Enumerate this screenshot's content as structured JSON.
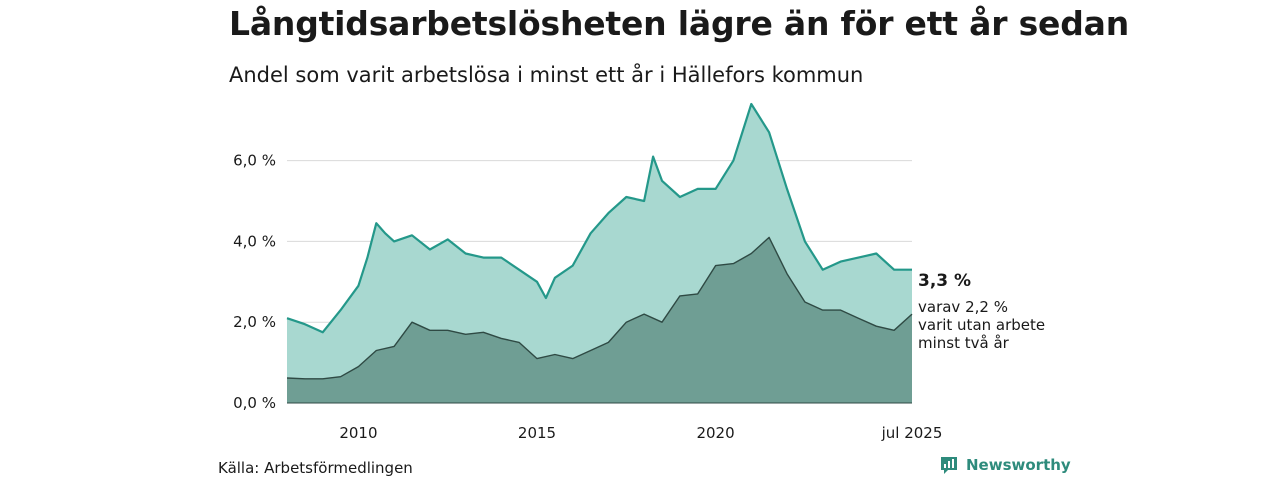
{
  "title": "Långtidsarbetslösheten lägre än för ett år sedan",
  "subtitle": "Andel som varit arbetslösa i minst ett år i Hällefors kommun",
  "source": "Källa: Arbetsförmedlingen",
  "brand": "Newsworthy",
  "colors": {
    "series1_fill": "#a8d8d0",
    "series1_line": "#24988a",
    "series2_fill": "#6f9e94",
    "series2_line": "#2f4a44",
    "grid": "#d9d9d9",
    "brand": "#2e8b7c"
  },
  "chart_data": {
    "type": "area",
    "title": "Långtidsarbetslösheten lägre än för ett år sedan",
    "subtitle": "Andel som varit arbetslösa i minst ett år i Hällefors kommun",
    "ylim": [
      0,
      7.5
    ],
    "xlim": [
      "2008-01",
      "2025-07"
    ],
    "y_ticks": [
      "0,0 %",
      "2,0 %",
      "4,0 %",
      "6,0 %"
    ],
    "y_tick_values": [
      0,
      2,
      4,
      6
    ],
    "x_ticks": [
      "2010",
      "2015",
      "2020",
      "jul 2025"
    ],
    "x_tick_values": [
      "2010-01",
      "2015-01",
      "2020-01",
      "2025-07"
    ],
    "grid": true,
    "series": [
      {
        "name": "Arbetslösa minst ett år",
        "points": [
          [
            "2008-01",
            2.1
          ],
          [
            "2008-07",
            1.95
          ],
          [
            "2009-01",
            1.75
          ],
          [
            "2009-07",
            2.3
          ],
          [
            "2010-01",
            2.9
          ],
          [
            "2010-04",
            3.6
          ],
          [
            "2010-07",
            4.45
          ],
          [
            "2010-10",
            4.2
          ],
          [
            "2011-01",
            4.0
          ],
          [
            "2011-07",
            4.15
          ],
          [
            "2012-01",
            3.8
          ],
          [
            "2012-07",
            4.05
          ],
          [
            "2013-01",
            3.7
          ],
          [
            "2013-07",
            3.6
          ],
          [
            "2014-01",
            3.6
          ],
          [
            "2014-07",
            3.3
          ],
          [
            "2015-01",
            3.0
          ],
          [
            "2015-04",
            2.6
          ],
          [
            "2015-07",
            3.1
          ],
          [
            "2016-01",
            3.4
          ],
          [
            "2016-07",
            4.2
          ],
          [
            "2017-01",
            4.7
          ],
          [
            "2017-07",
            5.1
          ],
          [
            "2018-01",
            5.0
          ],
          [
            "2018-04",
            6.1
          ],
          [
            "2018-07",
            5.5
          ],
          [
            "2019-01",
            5.1
          ],
          [
            "2019-07",
            5.3
          ],
          [
            "2020-01",
            5.3
          ],
          [
            "2020-07",
            6.0
          ],
          [
            "2021-01",
            7.4
          ],
          [
            "2021-07",
            6.7
          ],
          [
            "2022-01",
            5.3
          ],
          [
            "2022-07",
            4.0
          ],
          [
            "2023-01",
            3.3
          ],
          [
            "2023-07",
            3.5
          ],
          [
            "2024-01",
            3.6
          ],
          [
            "2024-07",
            3.7
          ],
          [
            "2025-01",
            3.3
          ],
          [
            "2025-07",
            3.3
          ]
        ]
      },
      {
        "name": "Arbetslösa minst två år",
        "points": [
          [
            "2008-01",
            0.62
          ],
          [
            "2008-07",
            0.6
          ],
          [
            "2009-01",
            0.6
          ],
          [
            "2009-07",
            0.65
          ],
          [
            "2010-01",
            0.9
          ],
          [
            "2010-07",
            1.3
          ],
          [
            "2011-01",
            1.4
          ],
          [
            "2011-07",
            2.0
          ],
          [
            "2012-01",
            1.8
          ],
          [
            "2012-07",
            1.8
          ],
          [
            "2013-01",
            1.7
          ],
          [
            "2013-07",
            1.75
          ],
          [
            "2014-01",
            1.6
          ],
          [
            "2014-07",
            1.5
          ],
          [
            "2015-01",
            1.1
          ],
          [
            "2015-07",
            1.2
          ],
          [
            "2016-01",
            1.1
          ],
          [
            "2016-07",
            1.3
          ],
          [
            "2017-01",
            1.5
          ],
          [
            "2017-07",
            2.0
          ],
          [
            "2018-01",
            2.2
          ],
          [
            "2018-07",
            2.0
          ],
          [
            "2019-01",
            2.65
          ],
          [
            "2019-07",
            2.7
          ],
          [
            "2020-01",
            3.4
          ],
          [
            "2020-07",
            3.45
          ],
          [
            "2021-01",
            3.7
          ],
          [
            "2021-07",
            4.1
          ],
          [
            "2022-01",
            3.2
          ],
          [
            "2022-07",
            2.5
          ],
          [
            "2023-01",
            2.3
          ],
          [
            "2023-07",
            2.3
          ],
          [
            "2024-01",
            2.1
          ],
          [
            "2024-07",
            1.9
          ],
          [
            "2025-01",
            1.8
          ],
          [
            "2025-07",
            2.2
          ]
        ]
      }
    ],
    "end_labels": {
      "main": "3,3 %",
      "sub_lines": [
        "varav 2,2 %",
        "varit utan arbete",
        "minst två år"
      ]
    }
  }
}
